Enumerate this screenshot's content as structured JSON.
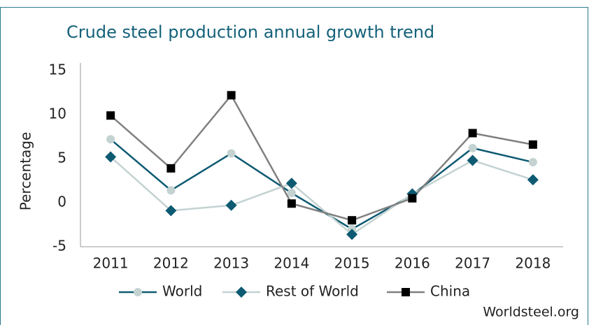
{
  "chart_data": {
    "type": "line",
    "title": "Crude steel production annual growth trend",
    "y_label": "Percentage",
    "source": "Worldsteel.org",
    "categories": [
      "2011",
      "2012",
      "2013",
      "2014",
      "2015",
      "2016",
      "2017",
      "2018"
    ],
    "series": [
      {
        "name": "World",
        "color": "#0d5a72",
        "marker": "circle",
        "marker_color": "#c4d2d2",
        "values": [
          7.2,
          1.4,
          5.6,
          1.1,
          -3.0,
          0.9,
          6.2,
          4.6
        ]
      },
      {
        "name": "Rest of World",
        "color": "#c4d2d2",
        "marker": "diamond",
        "marker_color": "#0d5a72",
        "values": [
          5.2,
          -0.9,
          -0.3,
          2.2,
          -3.6,
          1.0,
          4.8,
          2.6
        ]
      },
      {
        "name": "China",
        "color": "#808080",
        "marker": "square",
        "marker_color": "#000000",
        "values": [
          9.9,
          3.9,
          12.2,
          -0.1,
          -2.0,
          0.5,
          7.9,
          6.6
        ]
      }
    ],
    "ylim": [
      -5,
      15
    ],
    "yticks": [
      -5,
      0,
      5,
      10,
      15
    ],
    "grid": false,
    "legend": "bottom"
  }
}
